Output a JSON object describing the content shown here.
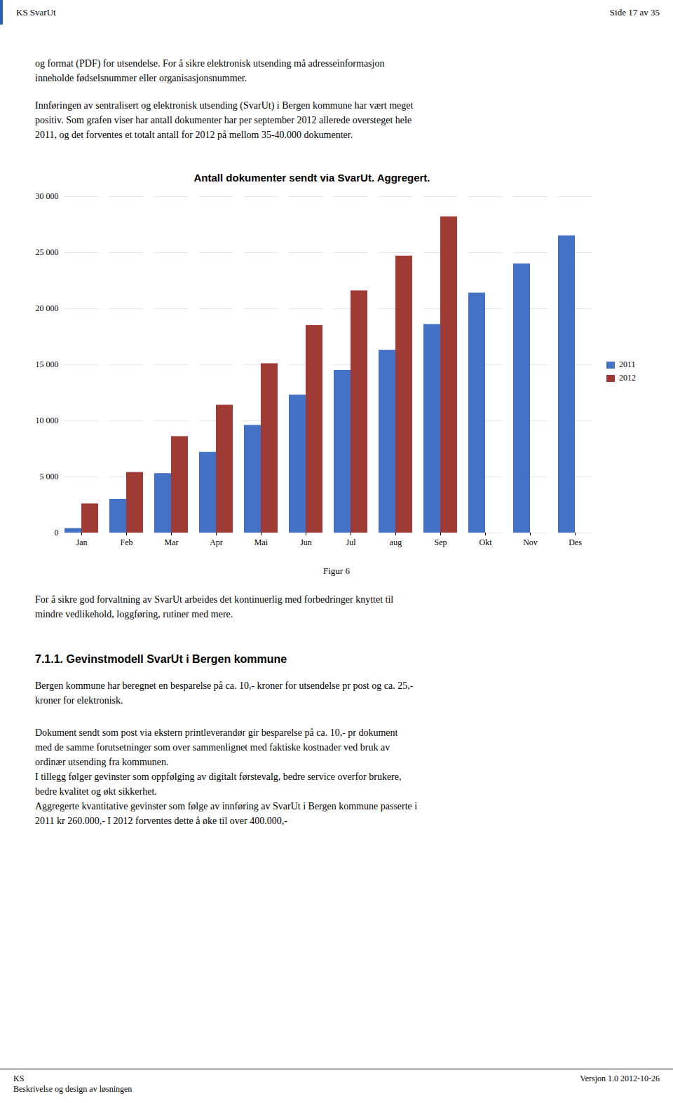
{
  "chart_data": {
    "type": "bar",
    "title": "Antall dokumenter sendt via SvarUt. Aggregert.",
    "categories": [
      "Jan",
      "Feb",
      "Mar",
      "Apr",
      "Mai",
      "Jun",
      "Jul",
      "aug",
      "Sep",
      "Okt",
      "Nov",
      "Des"
    ],
    "series": [
      {
        "name": "2011",
        "color": "#4472C4",
        "values": [
          400,
          3000,
          5300,
          7200,
          9600,
          12300,
          14500,
          16300,
          18600,
          21400,
          24000,
          26500
        ]
      },
      {
        "name": "2012",
        "color": "#9E3B35",
        "values": [
          2600,
          5400,
          8600,
          11400,
          15100,
          18500,
          21600,
          24700,
          28200,
          null,
          null,
          null
        ]
      }
    ],
    "ylim": [
      0,
      30000
    ],
    "yticks": [
      0,
      {
        "value": 5000,
        "label": "5 000"
      },
      {
        "value": 10000,
        "label": "10 000"
      },
      {
        "value": 15000,
        "label": "15 000"
      },
      {
        "value": 20000,
        "label": "20 000"
      },
      {
        "value": 25000,
        "label": "25 000"
      },
      {
        "value": 30000,
        "label": "30 000"
      }
    ],
    "grid": true,
    "legend": "right",
    "annotations": [
      "KS SvarUt",
      "Side 17 av 35",
      "og format (PDF) for utsendelse. For å sikre elektronisk utsending må adresseinformasjon\ninneholde fødselsnummer eller organisasjonsnummer.",
      "Innføringen av sentralisert og elektronisk utsending (SvarUt) i Bergen kommune har vært meget\npositiv. Som grafen viser har antall dokumenter har per september 2012 allerede oversteget hele\n2011, og det forventes et totalt antall for 2012 på mellom 35-40.000 dokumenter.",
      "Figur 6",
      "For å sikre god forvaltning av SvarUt arbeides det kontinuerlig med forbedringer knyttet til\nmindre vedlikehold, loggføring, rutiner med mere.",
      "7.1.1. Gevinstmodell SvarUt i Bergen kommune",
      "Bergen kommune har beregnet en besparelse på ca. 10,- kroner for utsendelse pr post og ca. 25,-\nkroner for elektronisk.",
      "Dokument sendt som post via ekstern printleverandør gir besparelse på ca. 10,- pr dokument\nmed de samme forutsetninger som over sammenlignet med faktiske kostnader ved bruk av\nordinær utsending fra kommunen.\nI tillegg følger gevinster som oppfølging av digitalt førstevalg, bedre service overfor brukere,\nbedre kvalitet og økt sikkerhet.\nAggregerte kvantitative gevinster som følge av innføring av SvarUt i Bergen kommune passerte i\n2011 kr 260.000,- I 2012 forventes dette å øke til over 400.000,-",
      "KS\nBeskrivelse og design av løsningen",
      "Versjon 1.0 2012-10-26"
    ]
  }
}
